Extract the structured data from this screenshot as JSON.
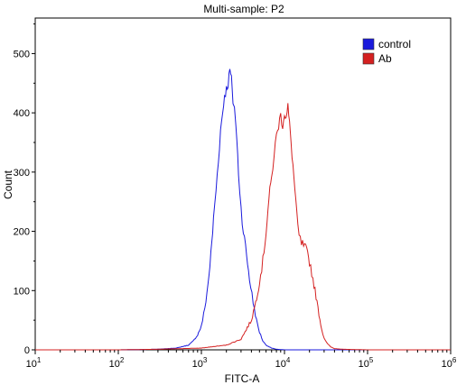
{
  "chart_data": {
    "type": "line",
    "title": "Multi-sample: P2",
    "xlabel": "FITC-A",
    "ylabel": "Count",
    "x_scale": "log",
    "xlim": [
      10,
      1000000
    ],
    "ylim": [
      0,
      560
    ],
    "x_ticks": [
      10,
      100,
      1000,
      10000,
      100000,
      1000000
    ],
    "x_tick_labels": [
      {
        "base": "10",
        "exp": "1"
      },
      {
        "base": "10",
        "exp": "2"
      },
      {
        "base": "10",
        "exp": "3"
      },
      {
        "base": "10",
        "exp": "4"
      },
      {
        "base": "10",
        "exp": "5"
      },
      {
        "base": "10",
        "exp": "6"
      }
    ],
    "y_ticks": [
      0,
      100,
      200,
      300,
      400,
      500
    ],
    "y_tick_labels": [
      "0",
      "100",
      "200",
      "300",
      "400",
      "500"
    ],
    "grid": false,
    "legend_position": "top-right",
    "series": [
      {
        "name": "control",
        "color": "#1a1adc",
        "x": [
          10,
          100,
          300,
          500,
          700,
          800,
          900,
          1000,
          1100,
          1200,
          1300,
          1400,
          1500,
          1600,
          1700,
          1800,
          1900,
          2000,
          2100,
          2200,
          2300,
          2400,
          2500,
          2600,
          2800,
          3000,
          3200,
          3500,
          3800,
          4200,
          4600,
          5000,
          5500,
          6000,
          7000,
          8000,
          10000,
          20000,
          100000,
          1000000
        ],
        "y": [
          0,
          0,
          1,
          3,
          8,
          15,
          25,
          40,
          70,
          110,
          160,
          220,
          270,
          320,
          370,
          400,
          430,
          440,
          450,
          472,
          455,
          420,
          410,
          380,
          300,
          240,
          200,
          160,
          120,
          80,
          50,
          30,
          15,
          8,
          3,
          1,
          0,
          0,
          0,
          0
        ]
      },
      {
        "name": "Ab",
        "color": "#d42020",
        "x": [
          10,
          100,
          300,
          1000,
          2000,
          3000,
          4000,
          4500,
          5000,
          5500,
          6000,
          6500,
          7000,
          7500,
          8000,
          8500,
          9000,
          9500,
          10000,
          10500,
          11000,
          11500,
          12000,
          13000,
          14000,
          15000,
          16000,
          17000,
          18000,
          19000,
          20000,
          22000,
          24000,
          26000,
          28000,
          30000,
          33000,
          36000,
          40000,
          50000,
          100000,
          1000000
        ],
        "y": [
          0,
          0,
          1,
          3,
          8,
          18,
          50,
          80,
          115,
          150,
          200,
          255,
          290,
          330,
          360,
          380,
          395,
          380,
          400,
          390,
          410,
          380,
          350,
          290,
          230,
          190,
          180,
          175,
          170,
          160,
          150,
          120,
          90,
          60,
          35,
          20,
          10,
          5,
          2,
          1,
          0,
          0
        ]
      }
    ]
  }
}
